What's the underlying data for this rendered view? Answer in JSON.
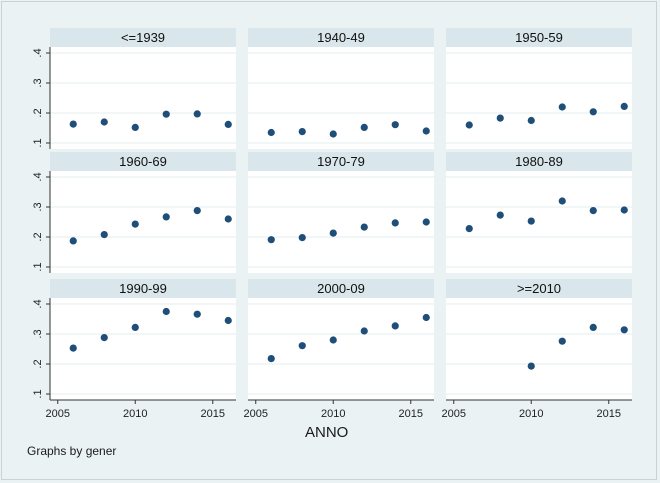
{
  "chart_data": {
    "type": "scatter",
    "layout": "3x3 small multiples",
    "by_variable_note": "Graphs by gener",
    "xlabel": "ANNO",
    "ylabel": "",
    "xlim": [
      2004.5,
      2016.5
    ],
    "ylim": [
      0.08,
      0.42
    ],
    "x_ticks": [
      2005,
      2010,
      2015
    ],
    "y_ticks": [
      0.1,
      0.2,
      0.3,
      0.4
    ],
    "y_tick_labels": [
      ".1",
      ".2",
      ".3",
      ".4"
    ],
    "marker_color": "#1f4e79",
    "panels": [
      {
        "label": "<=1939",
        "x": [
          2006,
          2008,
          2010,
          2012,
          2014,
          2016
        ],
        "y": [
          0.163,
          0.17,
          0.152,
          0.196,
          0.197,
          0.162
        ]
      },
      {
        "label": "1940-49",
        "x": [
          2006,
          2008,
          2010,
          2012,
          2014,
          2016
        ],
        "y": [
          0.135,
          0.138,
          0.13,
          0.152,
          0.161,
          0.14
        ]
      },
      {
        "label": "1950-59",
        "x": [
          2006,
          2008,
          2010,
          2012,
          2014,
          2016
        ],
        "y": [
          0.16,
          0.183,
          0.175,
          0.22,
          0.204,
          0.222
        ]
      },
      {
        "label": "1960-69",
        "x": [
          2006,
          2008,
          2010,
          2012,
          2014,
          2016
        ],
        "y": [
          0.187,
          0.208,
          0.243,
          0.267,
          0.288,
          0.26
        ]
      },
      {
        "label": "1970-79",
        "x": [
          2006,
          2008,
          2010,
          2012,
          2014,
          2016
        ],
        "y": [
          0.191,
          0.198,
          0.213,
          0.233,
          0.247,
          0.25
        ]
      },
      {
        "label": "1980-89",
        "x": [
          2006,
          2008,
          2010,
          2012,
          2014,
          2016
        ],
        "y": [
          0.228,
          0.273,
          0.253,
          0.32,
          0.288,
          0.29
        ]
      },
      {
        "label": "1990-99",
        "x": [
          2006,
          2008,
          2010,
          2012,
          2014,
          2016
        ],
        "y": [
          0.253,
          0.288,
          0.322,
          0.375,
          0.366,
          0.345
        ]
      },
      {
        "label": "2000-09",
        "x": [
          2006,
          2008,
          2010,
          2012,
          2014,
          2016
        ],
        "y": [
          0.218,
          0.261,
          0.28,
          0.31,
          0.327,
          0.355
        ]
      },
      {
        "label": ">=2010",
        "x": [
          2010,
          2012,
          2014,
          2016
        ],
        "y": [
          0.193,
          0.276,
          0.322,
          0.314
        ]
      }
    ]
  },
  "colors": {
    "page_bg": "#eaf2f3",
    "panel_bg": "#ffffff",
    "strip_bg": "#d9e6eb",
    "grid": "#e3ecef",
    "axis": "#333333",
    "marker": "#1f4e79"
  }
}
